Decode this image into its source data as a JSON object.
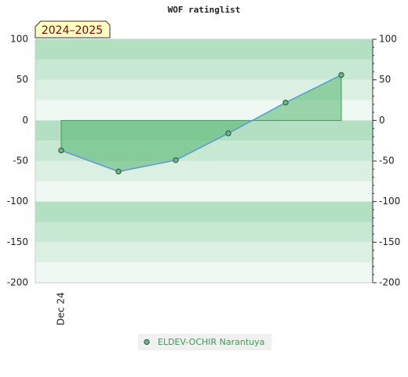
{
  "chart_data": {
    "type": "area",
    "title": "WOF ratinglist",
    "badge": "2024–2025",
    "categories": [
      "Dec 24",
      null,
      null,
      null,
      null,
      null
    ],
    "series": [
      {
        "name": "ELDEV-OCHIR Narantuya",
        "color": "#66b877",
        "values": [
          -37,
          -63,
          -49,
          -16,
          22,
          56
        ]
      }
    ],
    "ylim": [
      -200,
      100
    ],
    "yticks": [
      -200,
      -150,
      -100,
      -50,
      0,
      50,
      100
    ],
    "grid": true
  }
}
